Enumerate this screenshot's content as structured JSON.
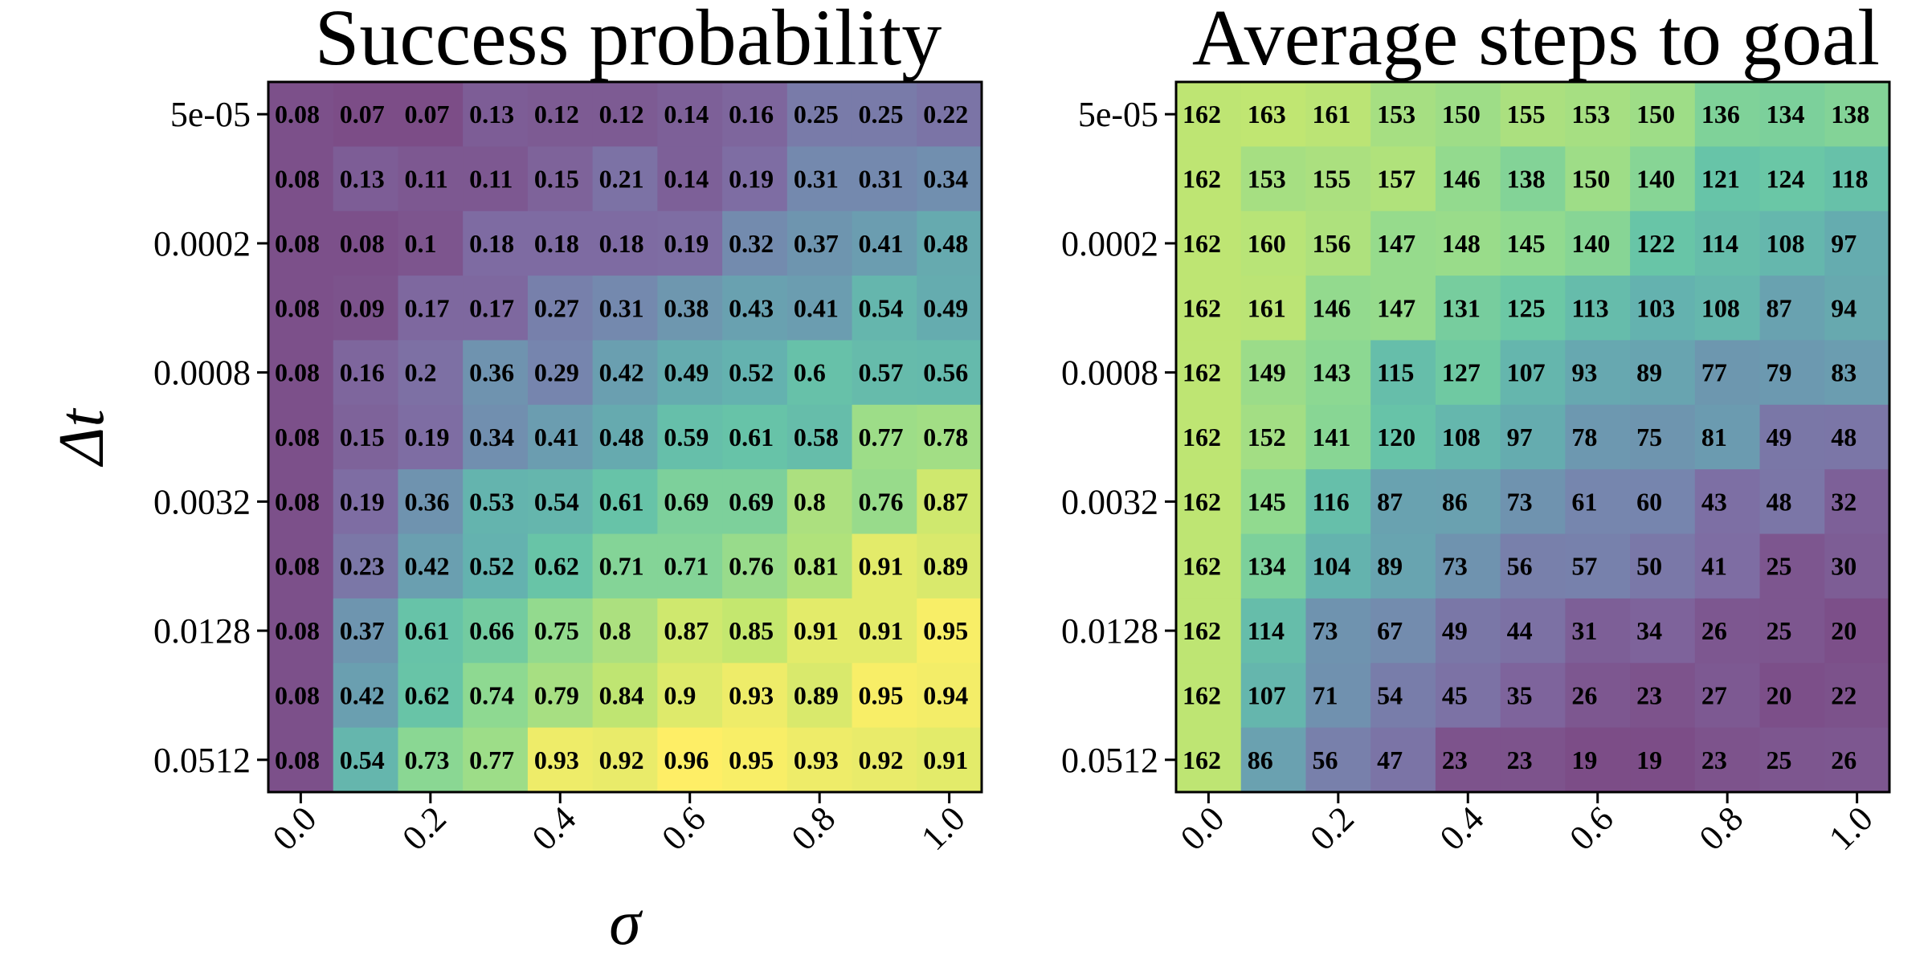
{
  "chart_data": [
    {
      "type": "heatmap",
      "title": "Success probability",
      "xlabel": "σ",
      "ylabel": "Δt",
      "x": [
        "0.0",
        "0.1",
        "0.2",
        "0.3",
        "0.4",
        "0.5",
        "0.6",
        "0.7",
        "0.8",
        "0.9",
        "1.0"
      ],
      "xtick_labels": [
        "0.0",
        "0.2",
        "0.4",
        "0.6",
        "0.8",
        "1.0"
      ],
      "y": [
        "5e-05",
        "1e-04",
        "0.0002",
        "0.0004",
        "0.0008",
        "0.0016",
        "0.0032",
        "0.0064",
        "0.0128",
        "0.0256",
        "0.0512"
      ],
      "ytick_labels": [
        "5e-05",
        "0.0002",
        "0.0008",
        "0.0032",
        "0.0128",
        "0.0512"
      ],
      "colormap": "viridis",
      "vmin": 0.07,
      "vmax": 0.96,
      "values": [
        [
          "0.08",
          "0.07",
          "0.07",
          "0.13",
          "0.12",
          "0.12",
          "0.14",
          "0.16",
          "0.25",
          "0.25",
          "0.22"
        ],
        [
          "0.08",
          "0.13",
          "0.11",
          "0.11",
          "0.15",
          "0.21",
          "0.14",
          "0.19",
          "0.31",
          "0.31",
          "0.34"
        ],
        [
          "0.08",
          "0.08",
          "0.1",
          "0.18",
          "0.18",
          "0.18",
          "0.19",
          "0.32",
          "0.37",
          "0.41",
          "0.48"
        ],
        [
          "0.08",
          "0.09",
          "0.17",
          "0.17",
          "0.27",
          "0.31",
          "0.38",
          "0.43",
          "0.41",
          "0.54",
          "0.49"
        ],
        [
          "0.08",
          "0.16",
          "0.2",
          "0.36",
          "0.29",
          "0.42",
          "0.49",
          "0.52",
          "0.6",
          "0.57",
          "0.56"
        ],
        [
          "0.08",
          "0.15",
          "0.19",
          "0.34",
          "0.41",
          "0.48",
          "0.59",
          "0.61",
          "0.58",
          "0.77",
          "0.78"
        ],
        [
          "0.08",
          "0.19",
          "0.36",
          "0.53",
          "0.54",
          "0.61",
          "0.69",
          "0.69",
          "0.8",
          "0.76",
          "0.87"
        ],
        [
          "0.08",
          "0.23",
          "0.42",
          "0.52",
          "0.62",
          "0.71",
          "0.71",
          "0.76",
          "0.81",
          "0.91",
          "0.89"
        ],
        [
          "0.08",
          "0.37",
          "0.61",
          "0.66",
          "0.75",
          "0.8",
          "0.87",
          "0.85",
          "0.91",
          "0.91",
          "0.95"
        ],
        [
          "0.08",
          "0.42",
          "0.62",
          "0.74",
          "0.79",
          "0.84",
          "0.9",
          "0.93",
          "0.89",
          "0.95",
          "0.94"
        ],
        [
          "0.08",
          "0.54",
          "0.73",
          "0.77",
          "0.93",
          "0.92",
          "0.96",
          "0.95",
          "0.93",
          "0.92",
          "0.91"
        ]
      ]
    },
    {
      "type": "heatmap",
      "title": "Average steps to goal",
      "xlabel": "",
      "ylabel": "",
      "x": [
        "0.0",
        "0.1",
        "0.2",
        "0.3",
        "0.4",
        "0.5",
        "0.6",
        "0.7",
        "0.8",
        "0.9",
        "1.0"
      ],
      "xtick_labels": [
        "0.0",
        "0.2",
        "0.4",
        "0.6",
        "0.8",
        "1.0"
      ],
      "y": [
        "5e-05",
        "1e-04",
        "0.0002",
        "0.0004",
        "0.0008",
        "0.0016",
        "0.0032",
        "0.0064",
        "0.0128",
        "0.0256",
        "0.0512"
      ],
      "ytick_labels": [
        "5e-05",
        "0.0002",
        "0.0008",
        "0.0032",
        "0.0128",
        "0.0512"
      ],
      "colormap": "viridis",
      "vmin": 19,
      "vmax": 185,
      "values": [
        [
          "162",
          "163",
          "161",
          "153",
          "150",
          "155",
          "153",
          "150",
          "136",
          "134",
          "138"
        ],
        [
          "162",
          "153",
          "155",
          "157",
          "146",
          "138",
          "150",
          "140",
          "121",
          "124",
          "118"
        ],
        [
          "162",
          "160",
          "156",
          "147",
          "148",
          "145",
          "140",
          "122",
          "114",
          "108",
          "97"
        ],
        [
          "162",
          "161",
          "146",
          "147",
          "131",
          "125",
          "113",
          "103",
          "108",
          "87",
          "94"
        ],
        [
          "162",
          "149",
          "143",
          "115",
          "127",
          "107",
          "93",
          "89",
          "77",
          "79",
          "83"
        ],
        [
          "162",
          "152",
          "141",
          "120",
          "108",
          "97",
          "78",
          "75",
          "81",
          "49",
          "48"
        ],
        [
          "162",
          "145",
          "116",
          "87",
          "86",
          "73",
          "61",
          "60",
          "43",
          "48",
          "32"
        ],
        [
          "162",
          "134",
          "104",
          "89",
          "73",
          "56",
          "57",
          "50",
          "41",
          "25",
          "30"
        ],
        [
          "162",
          "114",
          "73",
          "67",
          "49",
          "44",
          "31",
          "34",
          "26",
          "25",
          "20"
        ],
        [
          "162",
          "107",
          "71",
          "54",
          "45",
          "35",
          "26",
          "23",
          "27",
          "20",
          "22"
        ],
        [
          "162",
          "86",
          "56",
          "47",
          "23",
          "23",
          "19",
          "19",
          "23",
          "25",
          "26"
        ]
      ]
    }
  ]
}
